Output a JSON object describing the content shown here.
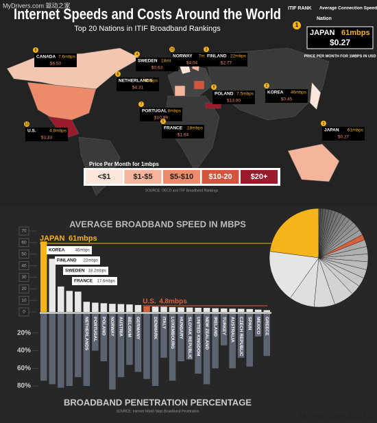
{
  "watermarks": {
    "top": "MyDrivers.com 驱动之家",
    "bottom": "MyDrivers.com 驱动之家"
  },
  "header": {
    "title": "Internet Speeds and Costs Around the World",
    "subtitle": "Top 20 Nations in ITIF Broadband Rankings"
  },
  "key": {
    "rank_label": "ITIF RANK",
    "nation_label": "Nation",
    "speed_label": "Average Connection Speed",
    "rank": 1,
    "name": "JAPAN",
    "speed": "61mbps",
    "price": "$0.27",
    "price_label": "PRICE PER MONTH FOR 1MBPS IN USD"
  },
  "map": {
    "callouts": [
      {
        "rank": 8,
        "name": "CANADA",
        "speed": "7.6mbps",
        "price": "$6.50"
      },
      {
        "rank": 4,
        "name": "SWEDEN",
        "speed": "18mbps",
        "price": "$0.63"
      },
      {
        "rank": 10,
        "name": "NORWAY",
        "speed": "7mbps",
        "price": "$4.04"
      },
      {
        "rank": 3,
        "name": "FINLAND",
        "speed": "22mbps",
        "price": "$2.77"
      },
      {
        "rank": 6,
        "name": "NETHERLANDS",
        "speed": "9mbps",
        "price": "$4.31"
      },
      {
        "rank": 9,
        "name": "POLAND",
        "speed": "7.5mbps",
        "price": "$13.00"
      },
      {
        "rank": 2,
        "name": "KOREA",
        "speed": "46mbps",
        "price": "$0.45"
      },
      {
        "rank": 7,
        "name": "PORTUGAL",
        "speed": "8mbps",
        "price": "$10.99"
      },
      {
        "rank": 5,
        "name": "FRANCE",
        "speed": "18mbps",
        "price": "$1.64"
      },
      {
        "rank": 15,
        "name": "U.S.",
        "speed": "4.8mbps",
        "price": "$3.33"
      },
      {
        "rank": 1,
        "name": "JAPAN",
        "speed": "61mbps",
        "price": "$0.27"
      }
    ],
    "legend_title": "Price Per Month for 1mbps",
    "legend": [
      {
        "label": "<$1",
        "color": "#fbe6dc"
      },
      {
        "label": "$1-$5",
        "color": "#f5b49c"
      },
      {
        "label": "$5-$10",
        "color": "#ec8a6a"
      },
      {
        "label": "$10-20",
        "color": "#d4553d"
      },
      {
        "label": "$20+",
        "color": "#9a1b2c"
      }
    ],
    "source": "SOURCE: OECD and ITIF Broadband Rankings"
  },
  "speed_chart": {
    "type": "bar",
    "title": "AVERAGE BROADBAND SPEED IN MBPS",
    "categories": [
      null,
      null,
      null,
      null,
      null,
      "NETHERLANDS",
      "PORTUGAL",
      "POLAND",
      "NORWAY",
      "AUSTRIA",
      "BELGIUM",
      "GERMANY",
      null,
      "DENMARK",
      "ITALY",
      "LUXEMBOURG",
      "HUNGARY",
      "SLOVAK REPUBLIC",
      "UNITED KINGDOM",
      "NEW ZEALAND",
      "IRELAND",
      "TURKEY",
      "AUSTRALIA",
      "CZECH REPUBLIC",
      "SPAIN",
      "MEXICO",
      "GREECE"
    ],
    "values": [
      61,
      46,
      22,
      18.2,
      17.6,
      8.8,
      8,
      7.5,
      7,
      6.8,
      6.5,
      6,
      4.8,
      4.6,
      4.5,
      4.2,
      4,
      3.8,
      3.6,
      3.5,
      3.2,
      3,
      2.8,
      2.7,
      2.5,
      2,
      1.5
    ],
    "value_labels": [
      "61mbps",
      "46mbps",
      "22mbps",
      "18.2mbps",
      "17.6mbps",
      null,
      null,
      null,
      null,
      null,
      null,
      null,
      "4.8mbps",
      null,
      null,
      null,
      null,
      null,
      null,
      null,
      null,
      null,
      null,
      null,
      null,
      null,
      null
    ],
    "callout_names": [
      "JAPAN",
      "KOREA",
      "FINLAND",
      "SWEDEN",
      "FRANCE",
      null,
      null,
      null,
      null,
      null,
      null,
      null,
      "U.S.",
      null,
      null,
      null,
      null,
      null,
      null,
      null,
      null,
      null,
      null,
      null,
      null,
      null,
      null
    ],
    "colors": {
      "highlight": "#f4b41a",
      "us": "#d9603a",
      "other": "#e8e8e8"
    },
    "ylim": [
      0,
      70
    ],
    "yticks": [
      0,
      10,
      20,
      30,
      40,
      50,
      60,
      70
    ]
  },
  "penetration_chart": {
    "type": "bar",
    "title": "BROADBAND PENETRATION PERCENTAGE",
    "source": "SOURCE: Internet World Stats Broadband Penetration",
    "values": [
      74,
      78,
      82,
      80,
      70,
      80,
      40,
      52,
      84,
      70,
      56,
      64,
      72,
      80,
      48,
      74,
      52,
      50,
      66,
      78,
      60,
      34,
      60,
      48,
      58,
      24,
      46
    ],
    "color": "#5d6471",
    "ylim": [
      0,
      80
    ],
    "yticks": [
      {
        "value": 20,
        "label": "20%"
      },
      {
        "value": 40,
        "label": "40%"
      },
      {
        "value": 60,
        "label": "60%"
      },
      {
        "value": 80,
        "label": "80%"
      }
    ]
  }
}
